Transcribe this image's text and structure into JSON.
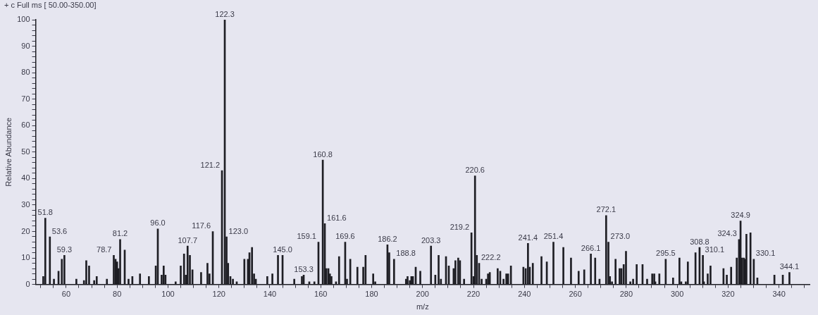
{
  "chart_data": {
    "type": "bar",
    "xlabel": "m/z",
    "ylabel": "Relative Abundance",
    "color": "#1e1e24",
    "x": [
      51.0,
      51.8,
      53.6,
      55.2,
      57.0,
      58.3,
      59.3,
      64.0,
      67.0,
      67.9,
      69.0,
      71.0,
      72.0,
      76.0,
      78.7,
      79.4,
      80.0,
      80.5,
      81.2,
      83.0,
      84.5,
      86.0,
      89.0,
      92.5,
      95.2,
      96.0,
      97.5,
      98.3,
      99.0,
      103.0,
      105.0,
      106.3,
      107.0,
      107.7,
      108.6,
      109.6,
      113.0,
      115.5,
      116.3,
      117.6,
      121.2,
      122.3,
      123.0,
      123.6,
      124.5,
      125.5,
      127.0,
      130.0,
      131.4,
      132.0,
      133.0,
      133.8,
      134.5,
      139.0,
      141.0,
      143.2,
      145.0,
      149.6,
      152.6,
      153.3,
      155.5,
      157.5,
      159.1,
      160.8,
      161.6,
      162.2,
      163.0,
      163.6,
      164.2,
      166.0,
      167.2,
      169.6,
      170.3,
      171.6,
      174.4,
      176.7,
      177.6,
      180.6,
      181.4,
      186.2,
      186.9,
      188.8,
      193.5,
      194.1,
      195.0,
      195.6,
      196.2,
      197.3,
      199.1,
      203.3,
      205.0,
      206.3,
      207.2,
      209.2,
      210.3,
      212.2,
      212.9,
      214.0,
      214.7,
      216.3,
      219.2,
      220.0,
      220.6,
      221.3,
      222.2,
      223.2,
      225.0,
      225.7,
      226.4,
      229.5,
      230.5,
      231.8,
      232.9,
      233.6,
      234.7,
      239.6,
      240.5,
      241.4,
      242.1,
      243.3,
      246.7,
      248.8,
      251.4,
      255.3,
      258.3,
      261.3,
      263.5,
      266.1,
      267.8,
      269.5,
      272.1,
      273.0,
      273.6,
      274.4,
      275.8,
      277.4,
      278.1,
      279.0,
      279.9,
      281.6,
      282.7,
      284.1,
      286.4,
      288.2,
      290.2,
      291.0,
      291.4,
      293.0,
      295.5,
      298.4,
      300.9,
      301.6,
      303.4,
      304.2,
      307.2,
      308.8,
      310.1,
      310.5,
      312.0,
      313.1,
      318.2,
      319.5,
      321.2,
      323.4,
      324.3,
      324.9,
      325.5,
      326.2,
      326.7,
      327.2,
      328.8,
      330.1,
      331.5,
      338.2,
      341.5,
      344.1
    ],
    "values": [
      3,
      25,
      18,
      2,
      5,
      9.5,
      11,
      2,
      1.5,
      9,
      7,
      1.5,
      3,
      2,
      11,
      9.5,
      8.5,
      6,
      17,
      13,
      2,
      3,
      4,
      3,
      7,
      21,
      3.5,
      7,
      3.5,
      1,
      7,
      11.5,
      3.5,
      14.5,
      11,
      5.5,
      4.5,
      8,
      4,
      20,
      43,
      100,
      18,
      8,
      3,
      2,
      1,
      9.5,
      9.5,
      12,
      14,
      4,
      2,
      3,
      4,
      11,
      11,
      2,
      3,
      3.5,
      1,
      1,
      16,
      47,
      23,
      6,
      6,
      4,
      3,
      1,
      10.5,
      16,
      2,
      9.5,
      6.5,
      6.5,
      11,
      4,
      1,
      15,
      12,
      9.5,
      2,
      3,
      1.5,
      3,
      3,
      6.5,
      5,
      14.5,
      3.5,
      11,
      2,
      10.5,
      7,
      6,
      9,
      10,
      9,
      2,
      19.5,
      3,
      41,
      11,
      8,
      2,
      2,
      4,
      4.5,
      6,
      5,
      2,
      4,
      4,
      7,
      6.5,
      6,
      15.5,
      6.5,
      8,
      10.5,
      8.5,
      16,
      14,
      10,
      5,
      5.5,
      11.5,
      10,
      2,
      26,
      16,
      3,
      1,
      9.5,
      6,
      6,
      7.5,
      12.5,
      1,
      2,
      7.5,
      7.5,
      2,
      4,
      4,
      1,
      4,
      9.5,
      2.5,
      10,
      1,
      1,
      8.5,
      12,
      14,
      11,
      1,
      4,
      7,
      6,
      3.5,
      6.5,
      10,
      17,
      24,
      10,
      10,
      9.5,
      19,
      19.5,
      9.5,
      2.5,
      3.5,
      3.5,
      4.5
    ],
    "xlim": [
      48,
      352
    ],
    "xticks": [
      {
        "value": 50,
        "label": null
      },
      {
        "value": 55,
        "label": null
      },
      60,
      {
        "value": 65,
        "label": null
      },
      {
        "value": 70,
        "label": null
      },
      {
        "value": 75,
        "label": null
      },
      80,
      {
        "value": 85,
        "label": null
      },
      {
        "value": 90,
        "label": null
      },
      {
        "value": 95,
        "label": null
      },
      100,
      {
        "value": 105,
        "label": null
      },
      {
        "value": 110,
        "label": null
      },
      {
        "value": 115,
        "label": null
      },
      120,
      {
        "value": 125,
        "label": null
      },
      {
        "value": 130,
        "label": null
      },
      {
        "value": 135,
        "label": null
      },
      140,
      {
        "value": 145,
        "label": null
      },
      {
        "value": 150,
        "label": null
      },
      {
        "value": 155,
        "label": null
      },
      160,
      {
        "value": 165,
        "label": null
      },
      {
        "value": 170,
        "label": null
      },
      {
        "value": 175,
        "label": null
      },
      180,
      {
        "value": 185,
        "label": null
      },
      {
        "value": 190,
        "label": null
      },
      {
        "value": 195,
        "label": null
      },
      200,
      {
        "value": 205,
        "label": null
      },
      {
        "value": 210,
        "label": null
      },
      {
        "value": 215,
        "label": null
      },
      220,
      {
        "value": 225,
        "label": null
      },
      {
        "value": 230,
        "label": null
      },
      {
        "value": 235,
        "label": null
      },
      240,
      {
        "value": 245,
        "label": null
      },
      {
        "value": 250,
        "label": null
      },
      {
        "value": 255,
        "label": null
      },
      260,
      {
        "value": 265,
        "label": null
      },
      {
        "value": 270,
        "label": null
      },
      {
        "value": 275,
        "label": null
      },
      280,
      {
        "value": 285,
        "label": null
      },
      {
        "value": 290,
        "label": null
      },
      {
        "value": 295,
        "label": null
      },
      300,
      {
        "value": 305,
        "label": null
      },
      {
        "value": 310,
        "label": null
      },
      {
        "value": 315,
        "label": null
      },
      320,
      {
        "value": 325,
        "label": null
      },
      {
        "value": 330,
        "label": null
      },
      {
        "value": 335,
        "label": null
      },
      340,
      {
        "value": 345,
        "label": null
      },
      {
        "value": 350,
        "label": null
      }
    ],
    "ylim": [
      0,
      100
    ],
    "yticks": [
      0,
      {
        "value": 2,
        "label": null
      },
      {
        "value": 4,
        "label": null
      },
      {
        "value": 6,
        "label": null
      },
      {
        "value": 8,
        "label": null
      },
      10,
      {
        "value": 12,
        "label": null
      },
      {
        "value": 14,
        "label": null
      },
      {
        "value": 16,
        "label": null
      },
      {
        "value": 18,
        "label": null
      },
      20,
      {
        "value": 22,
        "label": null
      },
      {
        "value": 24,
        "label": null
      },
      {
        "value": 26,
        "label": null
      },
      {
        "value": 28,
        "label": null
      },
      30,
      {
        "value": 32,
        "label": null
      },
      {
        "value": 34,
        "label": null
      },
      {
        "value": 36,
        "label": null
      },
      {
        "value": 38,
        "label": null
      },
      40,
      {
        "value": 42,
        "label": null
      },
      {
        "value": 44,
        "label": null
      },
      {
        "value": 46,
        "label": null
      },
      {
        "value": 48,
        "label": null
      },
      50,
      {
        "value": 52,
        "label": null
      },
      {
        "value": 54,
        "label": null
      },
      {
        "value": 56,
        "label": null
      },
      {
        "value": 58,
        "label": null
      },
      60,
      {
        "value": 62,
        "label": null
      },
      {
        "value": 64,
        "label": null
      },
      {
        "value": 66,
        "label": null
      },
      {
        "value": 68,
        "label": null
      },
      70,
      {
        "value": 72,
        "label": null
      },
      {
        "value": 74,
        "label": null
      },
      {
        "value": 76,
        "label": null
      },
      {
        "value": 78,
        "label": null
      },
      80,
      {
        "value": 82,
        "label": null
      },
      {
        "value": 84,
        "label": null
      },
      {
        "value": 86,
        "label": null
      },
      {
        "value": 88,
        "label": null
      },
      90,
      {
        "value": 92,
        "label": null
      },
      {
        "value": 94,
        "label": null
      },
      {
        "value": 96,
        "label": null
      },
      {
        "value": 98,
        "label": null
      },
      100
    ],
    "annotations": [
      "+ c Full ms [ 50.00-350.00]",
      {
        "text": "51.8",
        "x": 51.8,
        "y": 25
      },
      {
        "text": "53.6",
        "x": 53.6,
        "y": 18
      },
      {
        "text": "59.3",
        "x": 59.3,
        "y": 11
      },
      {
        "text": "78.7",
        "x": 78.7,
        "y": 11
      },
      {
        "text": "81.2",
        "x": 81.2,
        "y": 17
      },
      {
        "text": "96.0",
        "x": 96.0,
        "y": 21
      },
      {
        "text": "107.7",
        "x": 107.7,
        "y": 14.5
      },
      {
        "text": "117.6",
        "x": 117.6,
        "y": 20
      },
      {
        "text": "121.2",
        "x": 121.2,
        "y": 43
      },
      {
        "text": "122.3",
        "x": 122.3,
        "y": 100
      },
      {
        "text": "123.0",
        "x": 123.0,
        "y": 18
      },
      {
        "text": "145.0",
        "x": 145.0,
        "y": 11
      },
      {
        "text": "153.3",
        "x": 153.3,
        "y": 3.5
      },
      {
        "text": "159.1",
        "x": 159.1,
        "y": 16
      },
      {
        "text": "160.8",
        "x": 160.8,
        "y": 47
      },
      {
        "text": "161.6",
        "x": 161.6,
        "y": 23
      },
      {
        "text": "169.6",
        "x": 169.6,
        "y": 16
      },
      {
        "text": "186.2",
        "x": 186.2,
        "y": 15
      },
      {
        "text": "188.8",
        "x": 188.8,
        "y": 9.5
      },
      {
        "text": "203.3",
        "x": 203.3,
        "y": 14.5
      },
      {
        "text": "219.2",
        "x": 219.2,
        "y": 19.5
      },
      {
        "text": "220.6",
        "x": 220.6,
        "y": 41
      },
      {
        "text": "222.2",
        "x": 222.2,
        "y": 8
      },
      {
        "text": "241.4",
        "x": 241.4,
        "y": 15.5
      },
      {
        "text": "251.4",
        "x": 251.4,
        "y": 16
      },
      {
        "text": "266.1",
        "x": 266.1,
        "y": 11.5
      },
      {
        "text": "272.1",
        "x": 272.1,
        "y": 26
      },
      {
        "text": "273.0",
        "x": 273.0,
        "y": 16
      },
      {
        "text": "295.5",
        "x": 295.5,
        "y": 9.5
      },
      {
        "text": "308.8",
        "x": 308.8,
        "y": 14
      },
      {
        "text": "310.1",
        "x": 310.1,
        "y": 11
      },
      {
        "text": "324.3",
        "x": 324.3,
        "y": 17
      },
      {
        "text": "324.9",
        "x": 324.9,
        "y": 24
      },
      {
        "text": "330.1",
        "x": 330.1,
        "y": 9.5
      },
      {
        "text": "344.1",
        "x": 344.1,
        "y": 4.5
      }
    ]
  }
}
